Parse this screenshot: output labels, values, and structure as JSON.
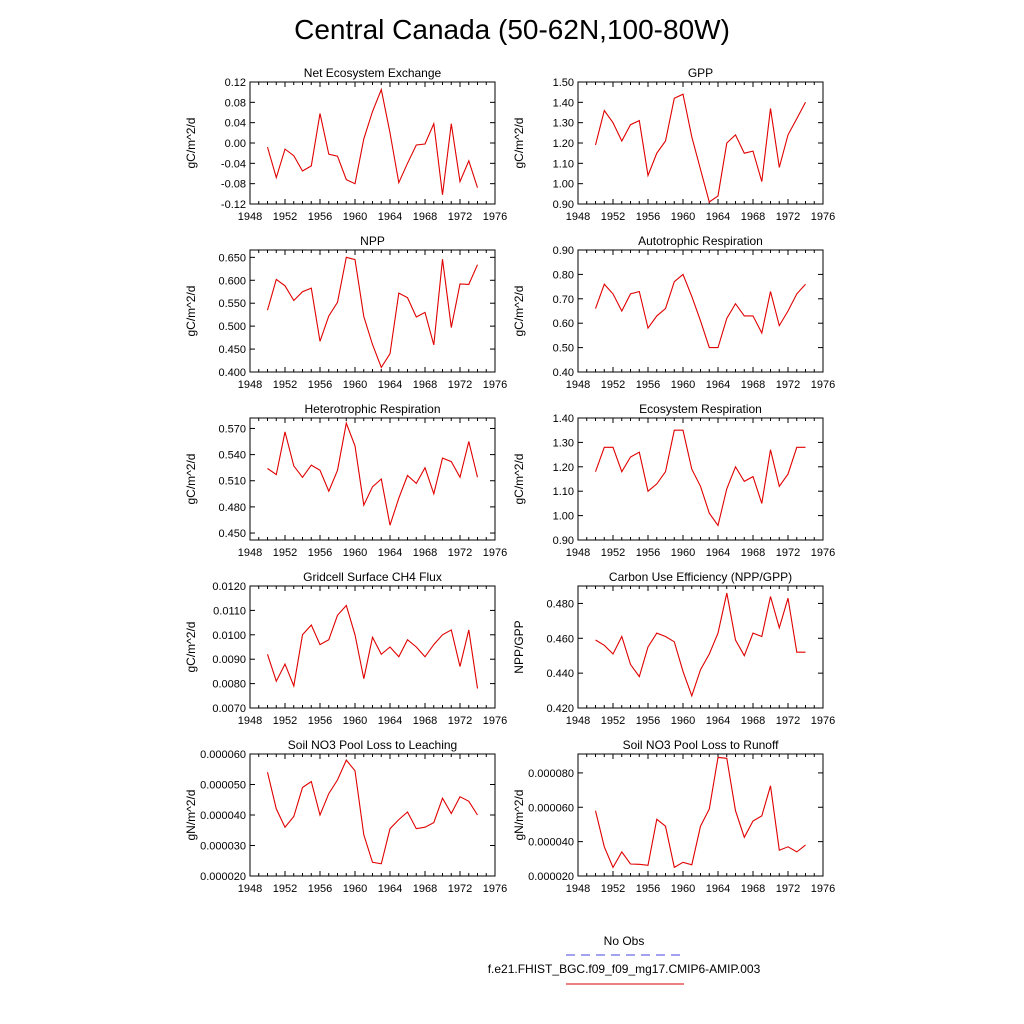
{
  "title": "Central Canada (50-62N,100-80W)",
  "legend": {
    "items": [
      {
        "label": "No Obs",
        "color": "#4444dd",
        "style": "dashed"
      },
      {
        "label": "f.e21.FHIST_BGC.f09_f09_mg17.CMIP6-AMIP.003",
        "color": "#e00000",
        "style": "solid"
      }
    ]
  },
  "chart_data": [
    {
      "type": "line",
      "title": "Net Ecosystem Exchange",
      "ylabel": "gC/m^2/d",
      "xlim": [
        1948,
        1976
      ],
      "xticks": [
        "1948",
        "1952",
        "1956",
        "1960",
        "1964",
        "1968",
        "1972",
        "1976"
      ],
      "ylim": [
        -0.12,
        0.12
      ],
      "yticks": [
        "-0.12",
        "-0.08",
        "-0.04",
        "0.00",
        "0.04",
        "0.08",
        "0.12"
      ],
      "x": [
        1950,
        1951,
        1952,
        1953,
        1954,
        1955,
        1956,
        1957,
        1958,
        1959,
        1960,
        1961,
        1962,
        1963,
        1964,
        1965,
        1966,
        1967,
        1968,
        1969,
        1970,
        1971,
        1972,
        1973,
        1974
      ],
      "values": [
        -0.008,
        -0.068,
        -0.012,
        -0.025,
        -0.055,
        -0.045,
        0.058,
        -0.022,
        -0.026,
        -0.072,
        -0.08,
        0.008,
        0.062,
        0.105,
        0.02,
        -0.078,
        -0.04,
        -0.004,
        -0.002,
        0.038,
        -0.102,
        0.038,
        -0.076,
        -0.035,
        -0.088
      ]
    },
    {
      "type": "line",
      "title": "GPP",
      "ylabel": "gC/m^2/d",
      "xlim": [
        1948,
        1976
      ],
      "xticks": [
        "1948",
        "1952",
        "1956",
        "1960",
        "1964",
        "1968",
        "1972",
        "1976"
      ],
      "ylim": [
        0.9,
        1.5
      ],
      "yticks": [
        "0.90",
        "1.00",
        "1.10",
        "1.20",
        "1.30",
        "1.40",
        "1.50"
      ],
      "x": [
        1950,
        1951,
        1952,
        1953,
        1954,
        1955,
        1956,
        1957,
        1958,
        1959,
        1960,
        1961,
        1962,
        1963,
        1964,
        1965,
        1966,
        1967,
        1968,
        1969,
        1970,
        1971,
        1972,
        1973,
        1974
      ],
      "values": [
        1.19,
        1.36,
        1.3,
        1.21,
        1.29,
        1.31,
        1.04,
        1.15,
        1.21,
        1.42,
        1.44,
        1.23,
        1.07,
        0.91,
        0.94,
        1.2,
        1.24,
        1.15,
        1.16,
        1.01,
        1.37,
        1.08,
        1.24,
        1.32,
        1.4
      ]
    },
    {
      "type": "line",
      "title": "NPP",
      "ylabel": "gC/m^2/d",
      "xlim": [
        1948,
        1976
      ],
      "xticks": [
        "1948",
        "1952",
        "1956",
        "1960",
        "1964",
        "1968",
        "1972",
        "1976"
      ],
      "ylim": [
        0.4,
        0.666
      ],
      "yticks": [
        "0.400",
        "0.450",
        "0.500",
        "0.550",
        "0.600",
        "0.650"
      ],
      "x": [
        1950,
        1951,
        1952,
        1953,
        1954,
        1955,
        1956,
        1957,
        1958,
        1959,
        1960,
        1961,
        1962,
        1963,
        1964,
        1965,
        1966,
        1967,
        1968,
        1969,
        1970,
        1971,
        1972,
        1973,
        1974
      ],
      "values": [
        0.535,
        0.602,
        0.588,
        0.556,
        0.575,
        0.583,
        0.467,
        0.522,
        0.552,
        0.65,
        0.645,
        0.521,
        0.46,
        0.41,
        0.44,
        0.572,
        0.562,
        0.52,
        0.53,
        0.459,
        0.646,
        0.497,
        0.592,
        0.591,
        0.634
      ]
    },
    {
      "type": "line",
      "title": "Autotrophic Respiration",
      "ylabel": "gC/m^2/d",
      "xlim": [
        1948,
        1976
      ],
      "xticks": [
        "1948",
        "1952",
        "1956",
        "1960",
        "1964",
        "1968",
        "1972",
        "1976"
      ],
      "ylim": [
        0.4,
        0.9
      ],
      "yticks": [
        "0.40",
        "0.50",
        "0.60",
        "0.70",
        "0.80",
        "0.90"
      ],
      "x": [
        1950,
        1951,
        1952,
        1953,
        1954,
        1955,
        1956,
        1957,
        1958,
        1959,
        1960,
        1961,
        1962,
        1963,
        1964,
        1965,
        1966,
        1967,
        1968,
        1969,
        1970,
        1971,
        1972,
        1973,
        1974
      ],
      "values": [
        0.66,
        0.76,
        0.72,
        0.65,
        0.72,
        0.73,
        0.58,
        0.63,
        0.66,
        0.77,
        0.8,
        0.71,
        0.61,
        0.5,
        0.5,
        0.62,
        0.68,
        0.63,
        0.63,
        0.56,
        0.73,
        0.59,
        0.65,
        0.72,
        0.76
      ]
    },
    {
      "type": "line",
      "title": "Heterotrophic Respiration",
      "ylabel": "gC/m^2/d",
      "xlim": [
        1948,
        1976
      ],
      "xticks": [
        "1948",
        "1952",
        "1956",
        "1960",
        "1964",
        "1968",
        "1972",
        "1976"
      ],
      "ylim": [
        0.442,
        0.582
      ],
      "yticks": [
        "0.450",
        "0.480",
        "0.510",
        "0.540",
        "0.570"
      ],
      "x": [
        1950,
        1951,
        1952,
        1953,
        1954,
        1955,
        1956,
        1957,
        1958,
        1959,
        1960,
        1961,
        1962,
        1963,
        1964,
        1965,
        1966,
        1967,
        1968,
        1969,
        1970,
        1971,
        1972,
        1973,
        1974
      ],
      "values": [
        0.524,
        0.517,
        0.566,
        0.527,
        0.514,
        0.528,
        0.522,
        0.498,
        0.522,
        0.576,
        0.55,
        0.482,
        0.503,
        0.512,
        0.459,
        0.49,
        0.516,
        0.507,
        0.525,
        0.495,
        0.536,
        0.532,
        0.514,
        0.555,
        0.514
      ]
    },
    {
      "type": "line",
      "title": "Ecosystem Respiration",
      "ylabel": "gC/m^2/d",
      "xlim": [
        1948,
        1976
      ],
      "xticks": [
        "1948",
        "1952",
        "1956",
        "1960",
        "1964",
        "1968",
        "1972",
        "1976"
      ],
      "ylim": [
        0.9,
        1.4
      ],
      "yticks": [
        "0.90",
        "1.00",
        "1.10",
        "1.20",
        "1.30",
        "1.40"
      ],
      "x": [
        1950,
        1951,
        1952,
        1953,
        1954,
        1955,
        1956,
        1957,
        1958,
        1959,
        1960,
        1961,
        1962,
        1963,
        1964,
        1965,
        1966,
        1967,
        1968,
        1969,
        1970,
        1971,
        1972,
        1973,
        1974
      ],
      "values": [
        1.18,
        1.28,
        1.28,
        1.18,
        1.24,
        1.26,
        1.1,
        1.13,
        1.18,
        1.35,
        1.35,
        1.19,
        1.12,
        1.01,
        0.96,
        1.11,
        1.2,
        1.14,
        1.16,
        1.05,
        1.27,
        1.12,
        1.17,
        1.28,
        1.28
      ]
    },
    {
      "type": "line",
      "title": "Gridcell Surface CH4 Flux",
      "ylabel": "gC/m^2/d",
      "xlim": [
        1948,
        1976
      ],
      "xticks": [
        "1948",
        "1952",
        "1956",
        "1960",
        "1964",
        "1968",
        "1972",
        "1976"
      ],
      "ylim": [
        0.007,
        0.012
      ],
      "yticks": [
        "0.0070",
        "0.0080",
        "0.0090",
        "0.0100",
        "0.0110",
        "0.0120"
      ],
      "x": [
        1950,
        1951,
        1952,
        1953,
        1954,
        1955,
        1956,
        1957,
        1958,
        1959,
        1960,
        1961,
        1962,
        1963,
        1964,
        1965,
        1966,
        1967,
        1968,
        1969,
        1970,
        1971,
        1972,
        1973,
        1974
      ],
      "values": [
        0.0092,
        0.0081,
        0.0088,
        0.0079,
        0.01,
        0.0104,
        0.0096,
        0.0098,
        0.0108,
        0.0112,
        0.01,
        0.0082,
        0.0099,
        0.0092,
        0.0095,
        0.0091,
        0.0098,
        0.0095,
        0.0091,
        0.0096,
        0.01,
        0.0102,
        0.0087,
        0.0102,
        0.0078
      ]
    },
    {
      "type": "line",
      "title": "Carbon Use Efficiency (NPP/GPP)",
      "ylabel": "NPP/GPP",
      "xlim": [
        1948,
        1976
      ],
      "xticks": [
        "1948",
        "1952",
        "1956",
        "1960",
        "1964",
        "1968",
        "1972",
        "1976"
      ],
      "ylim": [
        0.42,
        0.49
      ],
      "yticks": [
        "0.420",
        "0.440",
        "0.460",
        "0.480"
      ],
      "x": [
        1950,
        1951,
        1952,
        1953,
        1954,
        1955,
        1956,
        1957,
        1958,
        1959,
        1960,
        1961,
        1962,
        1963,
        1964,
        1965,
        1966,
        1967,
        1968,
        1969,
        1970,
        1971,
        1972,
        1973,
        1974
      ],
      "values": [
        0.459,
        0.456,
        0.451,
        0.461,
        0.445,
        0.438,
        0.455,
        0.463,
        0.461,
        0.458,
        0.441,
        0.427,
        0.442,
        0.451,
        0.463,
        0.486,
        0.459,
        0.45,
        0.463,
        0.461,
        0.484,
        0.466,
        0.483,
        0.452,
        0.452
      ]
    },
    {
      "type": "line",
      "title": "Soil NO3 Pool Loss to Leaching",
      "ylabel": "gN/m^2/d",
      "xlim": [
        1948,
        1976
      ],
      "xticks": [
        "1948",
        "1952",
        "1956",
        "1960",
        "1964",
        "1968",
        "1972",
        "1976"
      ],
      "ylim": [
        2e-05,
        6e-05
      ],
      "yticks": [
        "0.000020",
        "0.000030",
        "0.000040",
        "0.000050",
        "0.000060"
      ],
      "x": [
        1950,
        1951,
        1952,
        1953,
        1954,
        1955,
        1956,
        1957,
        1958,
        1959,
        1960,
        1961,
        1962,
        1963,
        1964,
        1965,
        1966,
        1967,
        1968,
        1969,
        1970,
        1971,
        1972,
        1973,
        1974
      ],
      "values": [
        5.4e-05,
        4.2e-05,
        3.6e-05,
        3.95e-05,
        4.9e-05,
        5.1e-05,
        4e-05,
        4.7e-05,
        5.15e-05,
        5.8e-05,
        5.45e-05,
        3.35e-05,
        2.45e-05,
        2.4e-05,
        3.55e-05,
        3.85e-05,
        4.1e-05,
        3.55e-05,
        3.6e-05,
        3.75e-05,
        4.55e-05,
        4.05e-05,
        4.6e-05,
        4.45e-05,
        4e-05
      ]
    },
    {
      "type": "line",
      "title": "Soil NO3 Pool Loss to Runoff",
      "ylabel": "gN/m^2/d",
      "xlim": [
        1948,
        1976
      ],
      "xticks": [
        "1948",
        "1952",
        "1956",
        "1960",
        "1964",
        "1968",
        "1972",
        "1976"
      ],
      "ylim": [
        2e-05,
        9.1e-05
      ],
      "yticks": [
        "0.000020",
        "0.000040",
        "0.000060",
        "0.000080"
      ],
      "x": [
        1950,
        1951,
        1952,
        1953,
        1954,
        1955,
        1956,
        1957,
        1958,
        1959,
        1960,
        1961,
        1962,
        1963,
        1964,
        1965,
        1966,
        1967,
        1968,
        1969,
        1970,
        1971,
        1972,
        1973,
        1974
      ],
      "values": [
        5.8e-05,
        3.7e-05,
        2.5e-05,
        3.4e-05,
        2.7e-05,
        2.68e-05,
        2.62e-05,
        5.3e-05,
        4.9e-05,
        2.5e-05,
        2.8e-05,
        2.65e-05,
        4.9e-05,
        5.9e-05,
        8.9e-05,
        8.85e-05,
        5.8e-05,
        4.25e-05,
        5.2e-05,
        5.5e-05,
        7.25e-05,
        3.5e-05,
        3.7e-05,
        3.4e-05,
        3.8e-05
      ]
    }
  ]
}
